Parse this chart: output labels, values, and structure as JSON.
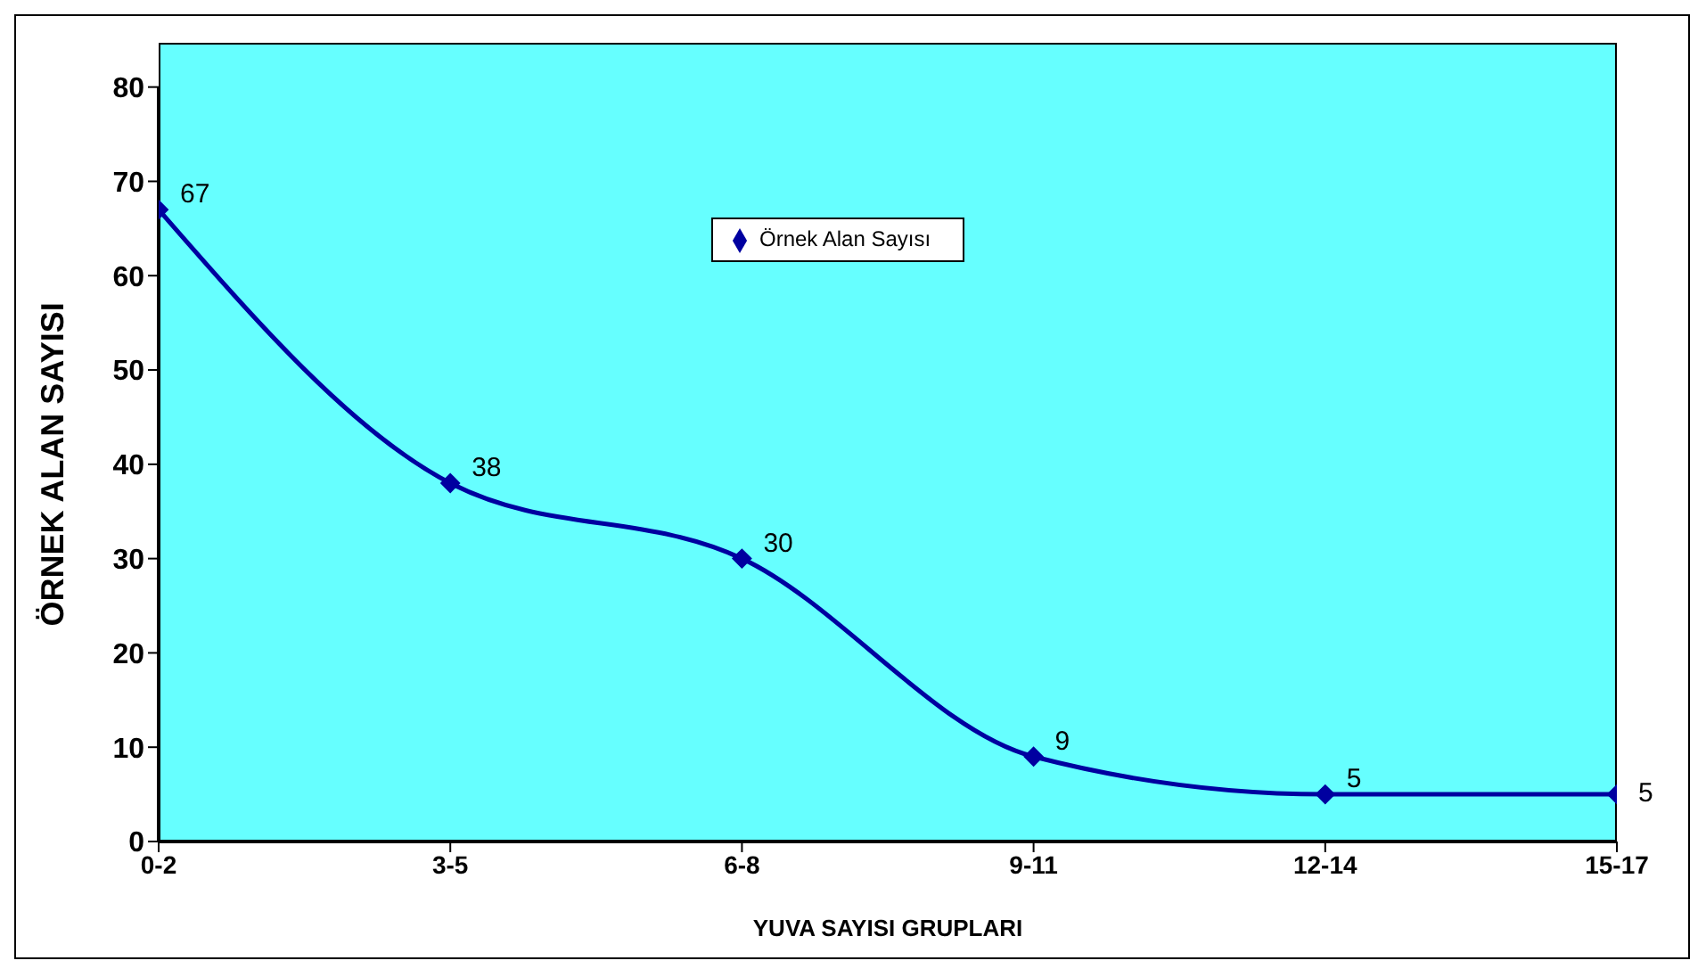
{
  "chart_data": {
    "type": "line",
    "xlabel": "YUVA SAYISI GRUPLARI",
    "ylabel": "ÖRNEK ALAN SAYISI",
    "categories": [
      "0-2",
      "3-5",
      "6-8",
      "9-11",
      "12-14",
      "15-17"
    ],
    "series": [
      {
        "name": "Örnek Alan Sayısı",
        "color": "#0000a0",
        "values": [
          67,
          38,
          30,
          9,
          5,
          5
        ]
      }
    ],
    "ylim": [
      0,
      80
    ],
    "yticks": [
      0,
      10,
      20,
      30,
      40,
      50,
      60,
      70,
      80
    ],
    "legend": "top",
    "marker": "diamond",
    "line_style": "solid",
    "data_labels": true
  }
}
